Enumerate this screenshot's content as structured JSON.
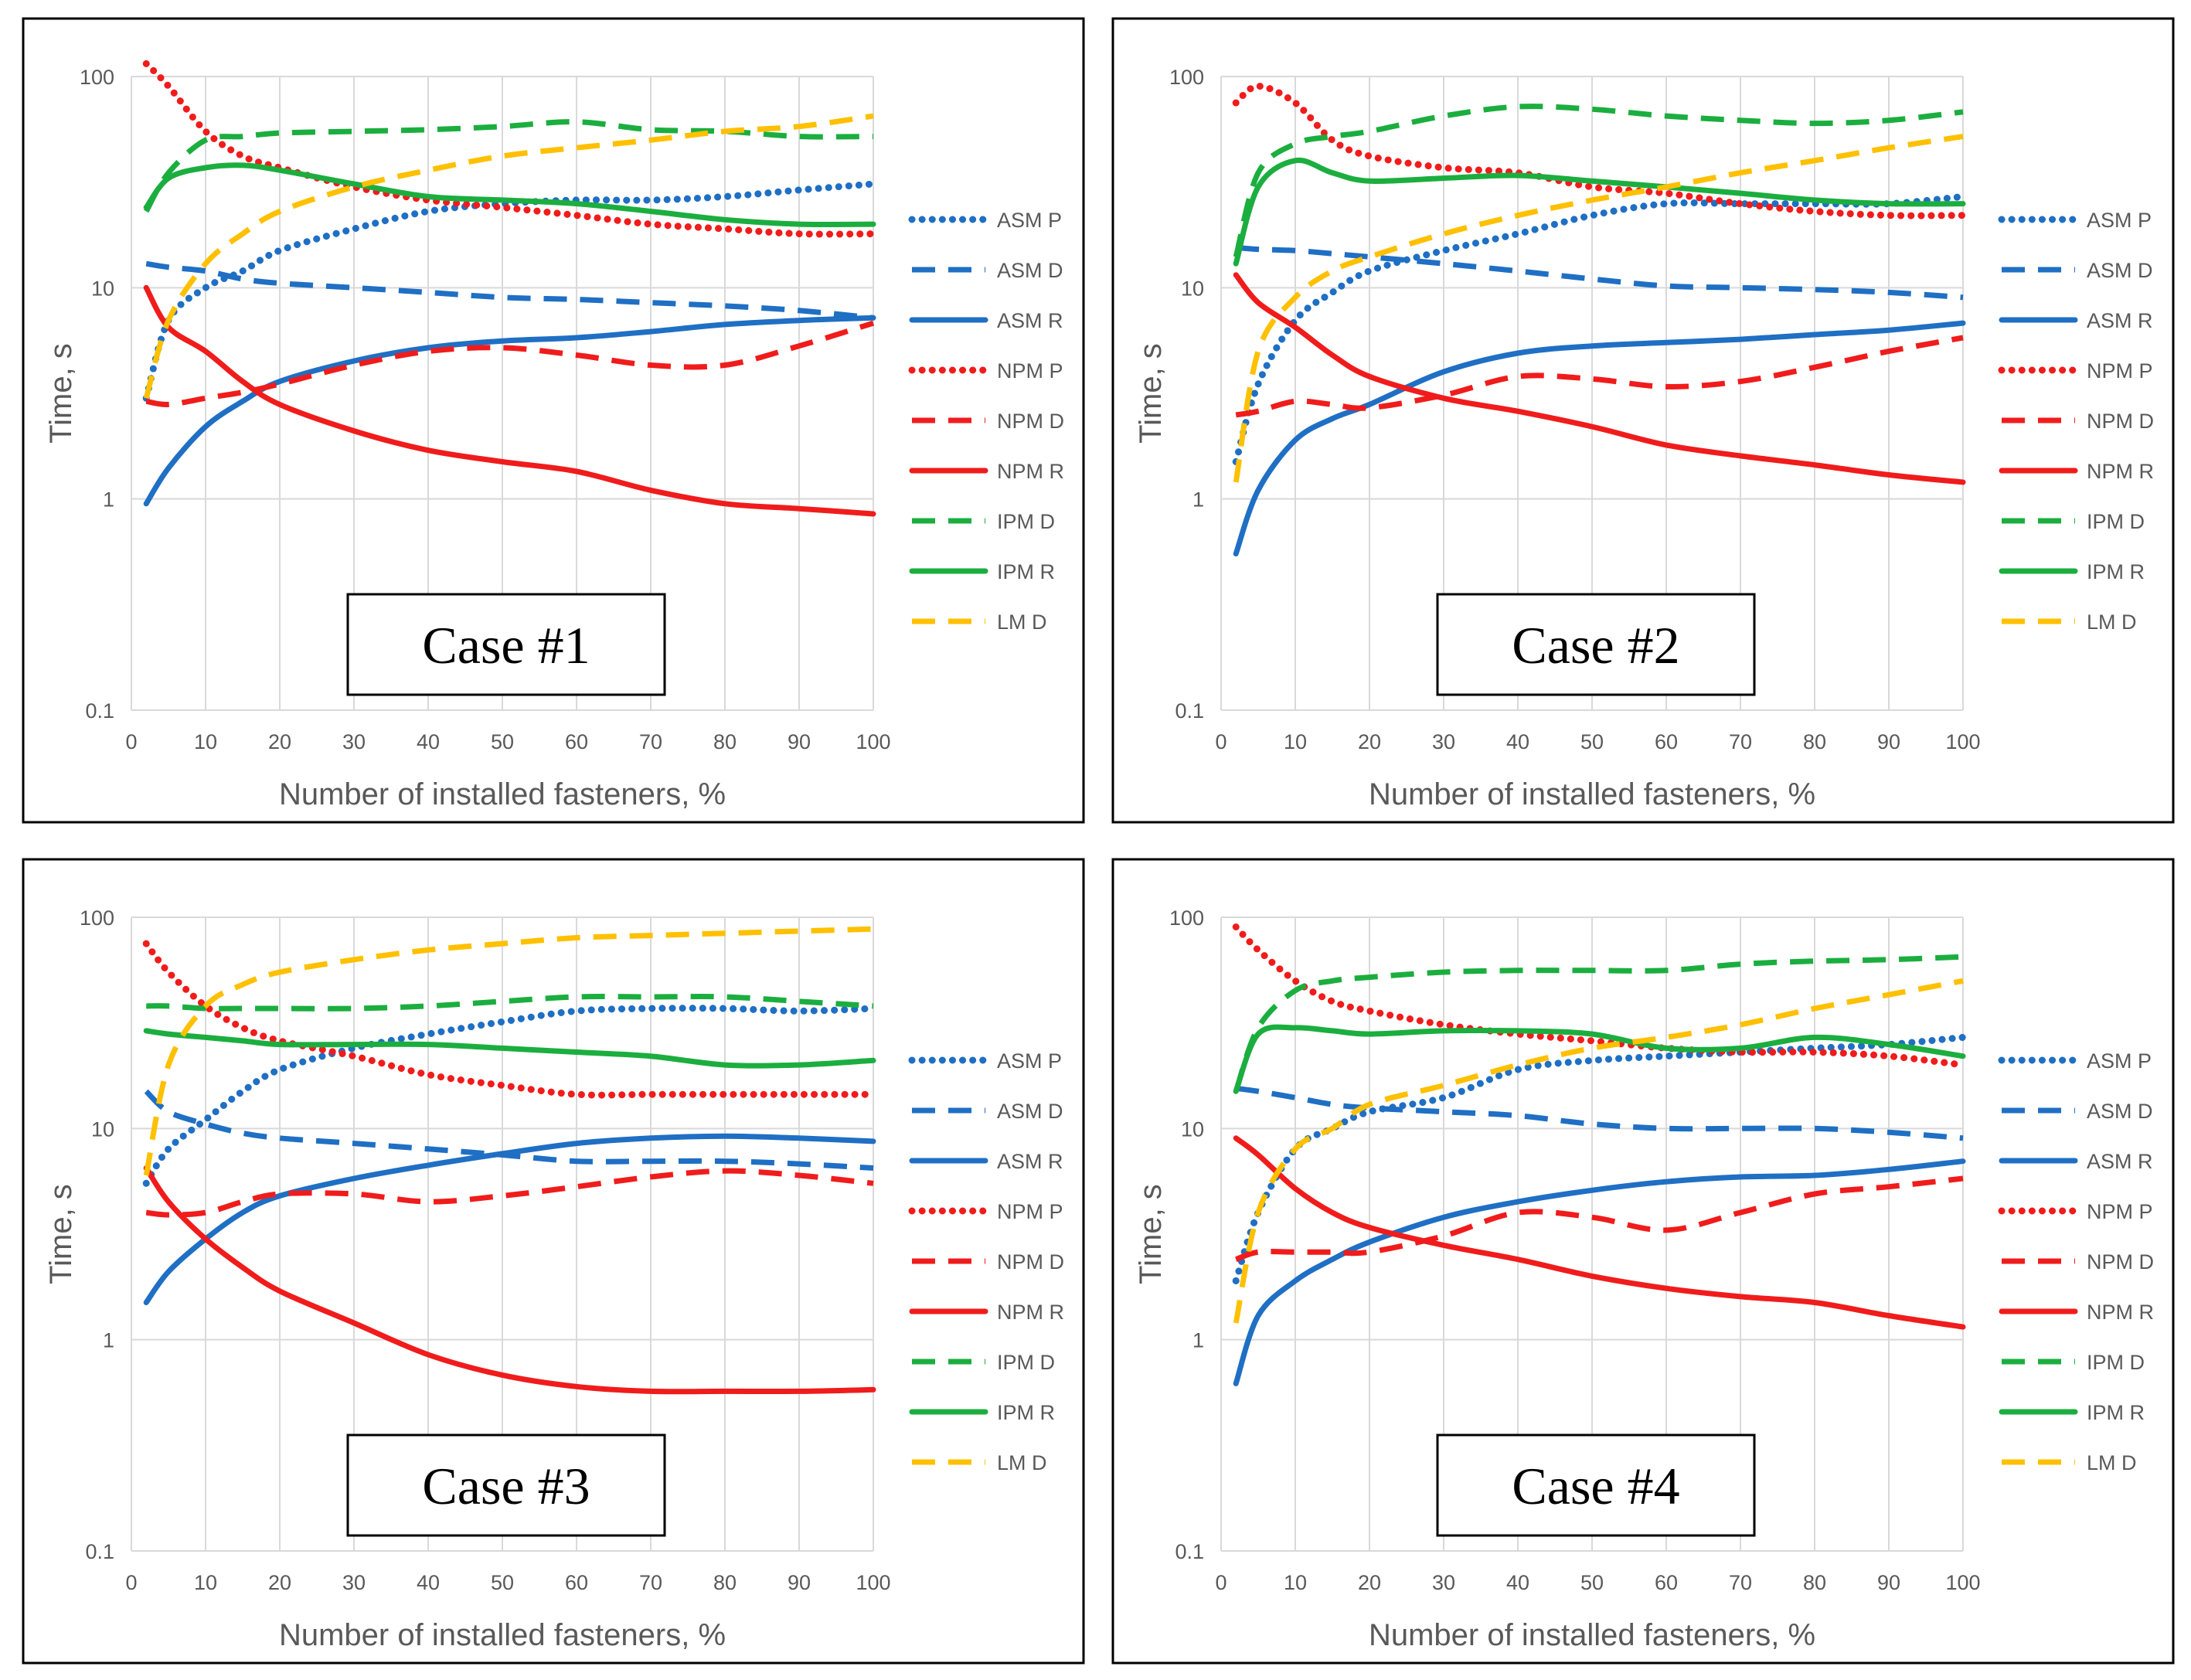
{
  "chart_data": [
    {
      "type": "line",
      "title": "Case #1",
      "xlabel": "Number of installed fasteners, %",
      "ylabel": "Time, s",
      "yscale": "log",
      "xlim": [
        0,
        100
      ],
      "ylim": [
        0.1,
        100
      ],
      "xticks": [
        "0",
        "10",
        "20",
        "30",
        "40",
        "50",
        "60",
        "70",
        "80",
        "90",
        "100"
      ],
      "yticks": [
        "0.1",
        "1",
        "10",
        "100"
      ],
      "legend_position": "right",
      "x": [
        2,
        5,
        10,
        15,
        20,
        30,
        40,
        50,
        60,
        70,
        80,
        90,
        100
      ],
      "series": [
        {
          "name": "ASM P",
          "values": [
            3,
            7,
            10,
            12,
            15,
            19,
            23,
            25,
            26,
            26,
            27,
            29,
            31
          ]
        },
        {
          "name": "ASM D",
          "values": [
            13,
            12.5,
            12,
            11,
            10.5,
            10,
            9.5,
            9,
            8.8,
            8.5,
            8.2,
            7.8,
            7.2
          ]
        },
        {
          "name": "ASM R",
          "values": [
            0.95,
            1.4,
            2.2,
            2.9,
            3.6,
            4.5,
            5.2,
            5.6,
            5.8,
            6.2,
            6.7,
            7.0,
            7.2
          ]
        },
        {
          "name": "NPM P",
          "values": [
            115,
            90,
            55,
            42,
            37,
            30,
            26,
            24,
            22,
            20,
            19,
            18,
            18
          ]
        },
        {
          "name": "NPM D",
          "values": [
            2.9,
            2.8,
            3.0,
            3.2,
            3.5,
            4.3,
            5.0,
            5.2,
            4.8,
            4.3,
            4.3,
            5.3,
            6.8
          ]
        },
        {
          "name": "NPM R",
          "values": [
            10,
            6.5,
            5,
            3.6,
            2.8,
            2.1,
            1.7,
            1.5,
            1.35,
            1.1,
            0.95,
            0.9,
            0.85
          ]
        },
        {
          "name": "IPM D",
          "values": [
            23,
            35,
            50,
            52,
            54,
            55,
            56,
            58,
            61,
            56,
            55,
            52,
            52
          ]
        },
        {
          "name": "IPM R",
          "values": [
            24,
            33,
            37,
            38,
            36,
            31,
            27,
            26,
            25,
            23,
            21,
            20,
            20
          ]
        },
        {
          "name": "LM D",
          "values": [
            3,
            7,
            13,
            18,
            23,
            30,
            36,
            42,
            46,
            50,
            55,
            58,
            65
          ]
        }
      ]
    },
    {
      "type": "line",
      "title": "Case #2",
      "xlabel": "Number of installed fasteners, %",
      "ylabel": "Time, s",
      "yscale": "log",
      "xlim": [
        0,
        100
      ],
      "ylim": [
        0.1,
        100
      ],
      "xticks": [
        "0",
        "10",
        "20",
        "30",
        "40",
        "50",
        "60",
        "70",
        "80",
        "90",
        "100"
      ],
      "yticks": [
        "0.1",
        "1",
        "10",
        "100"
      ],
      "legend_position": "right",
      "x": [
        2,
        5,
        10,
        15,
        20,
        30,
        40,
        50,
        60,
        70,
        80,
        90,
        100
      ],
      "series": [
        {
          "name": "ASM P",
          "values": [
            1.5,
            3.5,
            7,
            9.5,
            12,
            15,
            18,
            22,
            25,
            25,
            25,
            25,
            27
          ]
        },
        {
          "name": "ASM D",
          "values": [
            15.5,
            15.2,
            15,
            14.5,
            14,
            13,
            12,
            11,
            10.2,
            10,
            9.8,
            9.5,
            9
          ]
        },
        {
          "name": "ASM R",
          "values": [
            0.55,
            1.1,
            1.9,
            2.4,
            2.8,
            4,
            4.9,
            5.3,
            5.5,
            5.7,
            6,
            6.3,
            6.8
          ]
        },
        {
          "name": "NPM P",
          "values": [
            75,
            90,
            75,
            50,
            42,
            37,
            35,
            30,
            28,
            25,
            23,
            22,
            22
          ]
        },
        {
          "name": "NPM D",
          "values": [
            2.5,
            2.6,
            2.9,
            2.8,
            2.7,
            3.1,
            3.8,
            3.7,
            3.4,
            3.6,
            4.2,
            5,
            5.8
          ]
        },
        {
          "name": "NPM R",
          "values": [
            11.5,
            8.5,
            6.5,
            4.8,
            3.8,
            3.0,
            2.6,
            2.2,
            1.8,
            1.6,
            1.45,
            1.3,
            1.2
          ]
        },
        {
          "name": "IPM D",
          "values": [
            14,
            35,
            48,
            52,
            55,
            65,
            72,
            70,
            65,
            62,
            60,
            62,
            68
          ]
        },
        {
          "name": "IPM R",
          "values": [
            13,
            30,
            40,
            35,
            32,
            33,
            34,
            32,
            30,
            28,
            26,
            25,
            25
          ]
        },
        {
          "name": "LM D",
          "values": [
            1.2,
            5,
            9,
            12,
            14,
            18,
            22,
            26,
            30,
            35,
            40,
            46,
            52
          ]
        }
      ]
    },
    {
      "type": "line",
      "title": "Case #3",
      "xlabel": "Number of installed fasteners, %",
      "ylabel": "Time, s",
      "yscale": "log",
      "xlim": [
        0,
        100
      ],
      "ylim": [
        0.1,
        100
      ],
      "xticks": [
        "0",
        "10",
        "20",
        "30",
        "40",
        "50",
        "60",
        "70",
        "80",
        "90",
        "100"
      ],
      "yticks": [
        "0.1",
        "1",
        "10",
        "100"
      ],
      "legend_position": "right",
      "x": [
        2,
        5,
        10,
        15,
        20,
        30,
        40,
        50,
        60,
        70,
        80,
        90,
        100
      ],
      "series": [
        {
          "name": "ASM P",
          "values": [
            5.5,
            8,
            11,
            15,
            19,
            24,
            28,
            32,
            36,
            37,
            37,
            36,
            37
          ]
        },
        {
          "name": "ASM D",
          "values": [
            15,
            12,
            10.5,
            9.5,
            9,
            8.5,
            8,
            7.5,
            7,
            7,
            7,
            6.8,
            6.5
          ]
        },
        {
          "name": "ASM R",
          "values": [
            1.5,
            2.1,
            3,
            4,
            4.8,
            5.8,
            6.7,
            7.6,
            8.5,
            9,
            9.2,
            9,
            8.7
          ]
        },
        {
          "name": "NPM P",
          "values": [
            75,
            55,
            38,
            30,
            26,
            22,
            18,
            16,
            14.5,
            14.5,
            14.5,
            14.5,
            14.5
          ]
        },
        {
          "name": "NPM D",
          "values": [
            4,
            3.9,
            4.0,
            4.5,
            4.9,
            4.9,
            4.5,
            4.8,
            5.3,
            5.9,
            6.3,
            6.0,
            5.5
          ]
        },
        {
          "name": "NPM R",
          "values": [
            6.5,
            4.5,
            3,
            2.2,
            1.7,
            1.2,
            0.85,
            0.68,
            0.6,
            0.57,
            0.57,
            0.57,
            0.58
          ]
        },
        {
          "name": "IPM D",
          "values": [
            38,
            38,
            37,
            37,
            37,
            37,
            38,
            40,
            42,
            42,
            42,
            40,
            38
          ]
        },
        {
          "name": "IPM R",
          "values": [
            29,
            28,
            27,
            26,
            25,
            25,
            25,
            24,
            23,
            22,
            20,
            20,
            21
          ]
        },
        {
          "name": "LM D",
          "values": [
            6,
            20,
            38,
            48,
            55,
            63,
            70,
            75,
            80,
            82,
            84,
            86,
            88
          ]
        }
      ]
    },
    {
      "type": "line",
      "title": "Case #4",
      "xlabel": "Number of installed fasteners, %",
      "ylabel": "Time, s",
      "yscale": "log",
      "xlim": [
        0,
        100
      ],
      "ylim": [
        0.1,
        100
      ],
      "xticks": [
        "0",
        "10",
        "20",
        "30",
        "40",
        "50",
        "60",
        "70",
        "80",
        "90",
        "100"
      ],
      "yticks": [
        "0.1",
        "1",
        "10",
        "100"
      ],
      "legend_position": "right",
      "x": [
        2,
        5,
        10,
        15,
        20,
        30,
        40,
        50,
        60,
        70,
        80,
        90,
        100
      ],
      "series": [
        {
          "name": "ASM P",
          "values": [
            1.9,
            4,
            8,
            10,
            12,
            14,
            19,
            21,
            22,
            23,
            24,
            25,
            27
          ]
        },
        {
          "name": "ASM D",
          "values": [
            15.5,
            15,
            14,
            13,
            12.5,
            12,
            11.5,
            10.5,
            10,
            10,
            10,
            9.6,
            9
          ]
        },
        {
          "name": "ASM R",
          "values": [
            0.62,
            1.3,
            1.9,
            2.4,
            2.9,
            3.8,
            4.5,
            5.1,
            5.6,
            5.9,
            6,
            6.4,
            7
          ]
        },
        {
          "name": "NPM P",
          "values": [
            90,
            70,
            50,
            40,
            36,
            31,
            28,
            26,
            24,
            23,
            23,
            22,
            20
          ]
        },
        {
          "name": "NPM D",
          "values": [
            2.4,
            2.6,
            2.6,
            2.6,
            2.6,
            3.1,
            4,
            3.8,
            3.3,
            4.0,
            4.9,
            5.3,
            5.8
          ]
        },
        {
          "name": "NPM R",
          "values": [
            9,
            7.5,
            5.2,
            4,
            3.4,
            2.8,
            2.4,
            2.0,
            1.75,
            1.6,
            1.5,
            1.3,
            1.15
          ]
        },
        {
          "name": "IPM D",
          "values": [
            15,
            30,
            45,
            50,
            52,
            55,
            56,
            56,
            56,
            60,
            62,
            63,
            65
          ]
        },
        {
          "name": "IPM R",
          "values": [
            15,
            28,
            30,
            29,
            28,
            29,
            29,
            28,
            24,
            24,
            27,
            25,
            22
          ]
        },
        {
          "name": "LM D",
          "values": [
            1.2,
            4,
            8,
            10,
            13,
            16,
            20,
            24,
            27,
            31,
            37,
            43,
            50
          ]
        }
      ]
    }
  ],
  "series_styles": [
    {
      "name": "ASM P",
      "color": "#1F6FC4",
      "dash": "dot"
    },
    {
      "name": "ASM D",
      "color": "#1F6FC4",
      "dash": "dash"
    },
    {
      "name": "ASM R",
      "color": "#1F6FC4",
      "dash": "solid"
    },
    {
      "name": "NPM P",
      "color": "#F01C1C",
      "dash": "dot"
    },
    {
      "name": "NPM D",
      "color": "#F01C1C",
      "dash": "dash"
    },
    {
      "name": "NPM R",
      "color": "#F01C1C",
      "dash": "solid"
    },
    {
      "name": "IPM D",
      "color": "#1BAE3F",
      "dash": "dash"
    },
    {
      "name": "IPM R",
      "color": "#1BAE3F",
      "dash": "solid"
    },
    {
      "name": "LM D",
      "color": "#FFC000",
      "dash": "dash"
    }
  ]
}
